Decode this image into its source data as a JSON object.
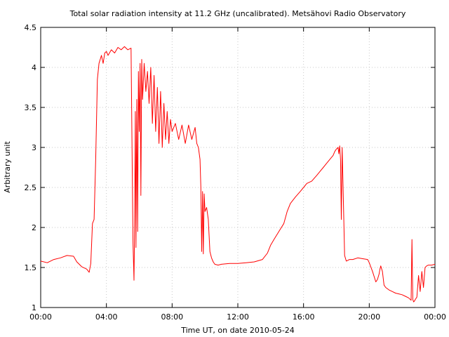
{
  "chart_data": {
    "type": "line",
    "title": "Total solar radiation intensity at 11.2 GHz (uncalibrated). Metsähovi Radio Observatory",
    "xlabel": "Time UT, on date 2010-05-24",
    "ylabel": "Arbitrary unit",
    "xlim": [
      0,
      24
    ],
    "ylim": [
      1,
      4.5
    ],
    "grid": true,
    "x_ticks": [
      {
        "value": 0,
        "label": "00:00"
      },
      {
        "value": 4,
        "label": "04:00"
      },
      {
        "value": 8,
        "label": "08:00"
      },
      {
        "value": 12,
        "label": "12:00"
      },
      {
        "value": 16,
        "label": "16:00"
      },
      {
        "value": 20,
        "label": "20:00"
      },
      {
        "value": 24,
        "label": "00:00"
      }
    ],
    "y_ticks": [
      {
        "value": 1,
        "label": "1"
      },
      {
        "value": 1.5,
        "label": "1.5"
      },
      {
        "value": 2,
        "label": "2"
      },
      {
        "value": 2.5,
        "label": "2.5"
      },
      {
        "value": 3,
        "label": "3"
      },
      {
        "value": 3.5,
        "label": "3.5"
      },
      {
        "value": 4,
        "label": "4"
      },
      {
        "value": 4.5,
        "label": "4.5"
      }
    ],
    "series": [
      {
        "color": "#ff0000",
        "x": [
          0,
          0.4,
          0.8,
          1.2,
          1.6,
          2.0,
          2.2,
          2.5,
          2.8,
          2.95,
          3.05,
          3.15,
          3.25,
          3.35,
          3.45,
          3.55,
          3.7,
          3.8,
          3.9,
          4.0,
          4.1,
          4.3,
          4.5,
          4.7,
          4.9,
          5.1,
          5.3,
          5.5,
          5.6,
          5.62,
          5.68,
          5.72,
          5.76,
          5.8,
          5.85,
          5.9,
          5.95,
          6.0,
          6.05,
          6.1,
          6.15,
          6.2,
          6.3,
          6.4,
          6.5,
          6.6,
          6.7,
          6.8,
          6.9,
          7.0,
          7.1,
          7.2,
          7.3,
          7.4,
          7.5,
          7.6,
          7.7,
          7.8,
          7.9,
          8.0,
          8.2,
          8.4,
          8.6,
          8.8,
          9.0,
          9.2,
          9.4,
          9.5,
          9.6,
          9.7,
          9.75,
          9.8,
          9.85,
          9.9,
          9.95,
          10.0,
          10.1,
          10.2,
          10.3,
          10.4,
          10.5,
          10.6,
          10.8,
          11.0,
          11.5,
          12.0,
          12.5,
          13.0,
          13.5,
          13.8,
          14.0,
          14.2,
          14.5,
          14.8,
          15.0,
          15.2,
          15.5,
          15.8,
          16.0,
          16.2,
          16.5,
          16.8,
          17.0,
          17.2,
          17.4,
          17.6,
          17.8,
          17.9,
          18.0,
          18.1,
          18.15,
          18.2,
          18.25,
          18.3,
          18.35,
          18.4,
          18.5,
          18.6,
          18.8,
          19.0,
          19.3,
          19.6,
          19.9,
          20.0,
          20.2,
          20.4,
          20.5,
          20.6,
          20.65,
          20.7,
          20.8,
          20.9,
          21.0,
          21.2,
          21.4,
          21.6,
          21.8,
          22.0,
          22.2,
          22.4,
          22.55,
          22.6,
          22.65,
          22.7,
          22.75,
          22.8,
          22.9,
          23.0,
          23.1,
          23.2,
          23.3,
          23.4,
          23.5,
          23.6,
          23.8,
          24.0
        ],
        "values": [
          1.58,
          1.56,
          1.6,
          1.62,
          1.65,
          1.64,
          1.57,
          1.51,
          1.48,
          1.44,
          1.55,
          2.05,
          2.1,
          2.85,
          3.85,
          4.05,
          4.15,
          4.05,
          4.18,
          4.2,
          4.15,
          4.22,
          4.18,
          4.25,
          4.22,
          4.26,
          4.22,
          4.24,
          2.2,
          1.8,
          1.34,
          2.1,
          3.45,
          1.75,
          3.6,
          1.95,
          3.95,
          3.2,
          4.05,
          2.4,
          4.1,
          3.6,
          4.05,
          3.7,
          3.95,
          3.55,
          4.0,
          3.3,
          3.9,
          3.2,
          3.75,
          3.05,
          3.7,
          3.0,
          3.55,
          3.1,
          3.45,
          3.05,
          3.35,
          3.2,
          3.3,
          3.1,
          3.28,
          3.05,
          3.28,
          3.1,
          3.25,
          3.05,
          3.0,
          2.85,
          2.5,
          1.7,
          2.45,
          1.67,
          2.42,
          2.2,
          2.25,
          2.1,
          1.7,
          1.62,
          1.57,
          1.54,
          1.53,
          1.54,
          1.55,
          1.55,
          1.56,
          1.57,
          1.6,
          1.68,
          1.78,
          1.85,
          1.95,
          2.05,
          2.2,
          2.3,
          2.38,
          2.45,
          2.5,
          2.55,
          2.58,
          2.65,
          2.7,
          2.75,
          2.8,
          2.85,
          2.9,
          2.95,
          2.98,
          3.0,
          2.92,
          3.02,
          2.85,
          2.1,
          3.0,
          2.55,
          1.65,
          1.58,
          1.6,
          1.6,
          1.62,
          1.61,
          1.6,
          1.56,
          1.45,
          1.32,
          1.35,
          1.42,
          1.48,
          1.52,
          1.45,
          1.28,
          1.25,
          1.22,
          1.2,
          1.18,
          1.17,
          1.16,
          1.14,
          1.12,
          1.09,
          1.85,
          1.1,
          1.07,
          1.08,
          1.1,
          1.13,
          1.4,
          1.2,
          1.45,
          1.25,
          1.5,
          1.52,
          1.53,
          1.53,
          1.54
        ]
      }
    ]
  }
}
